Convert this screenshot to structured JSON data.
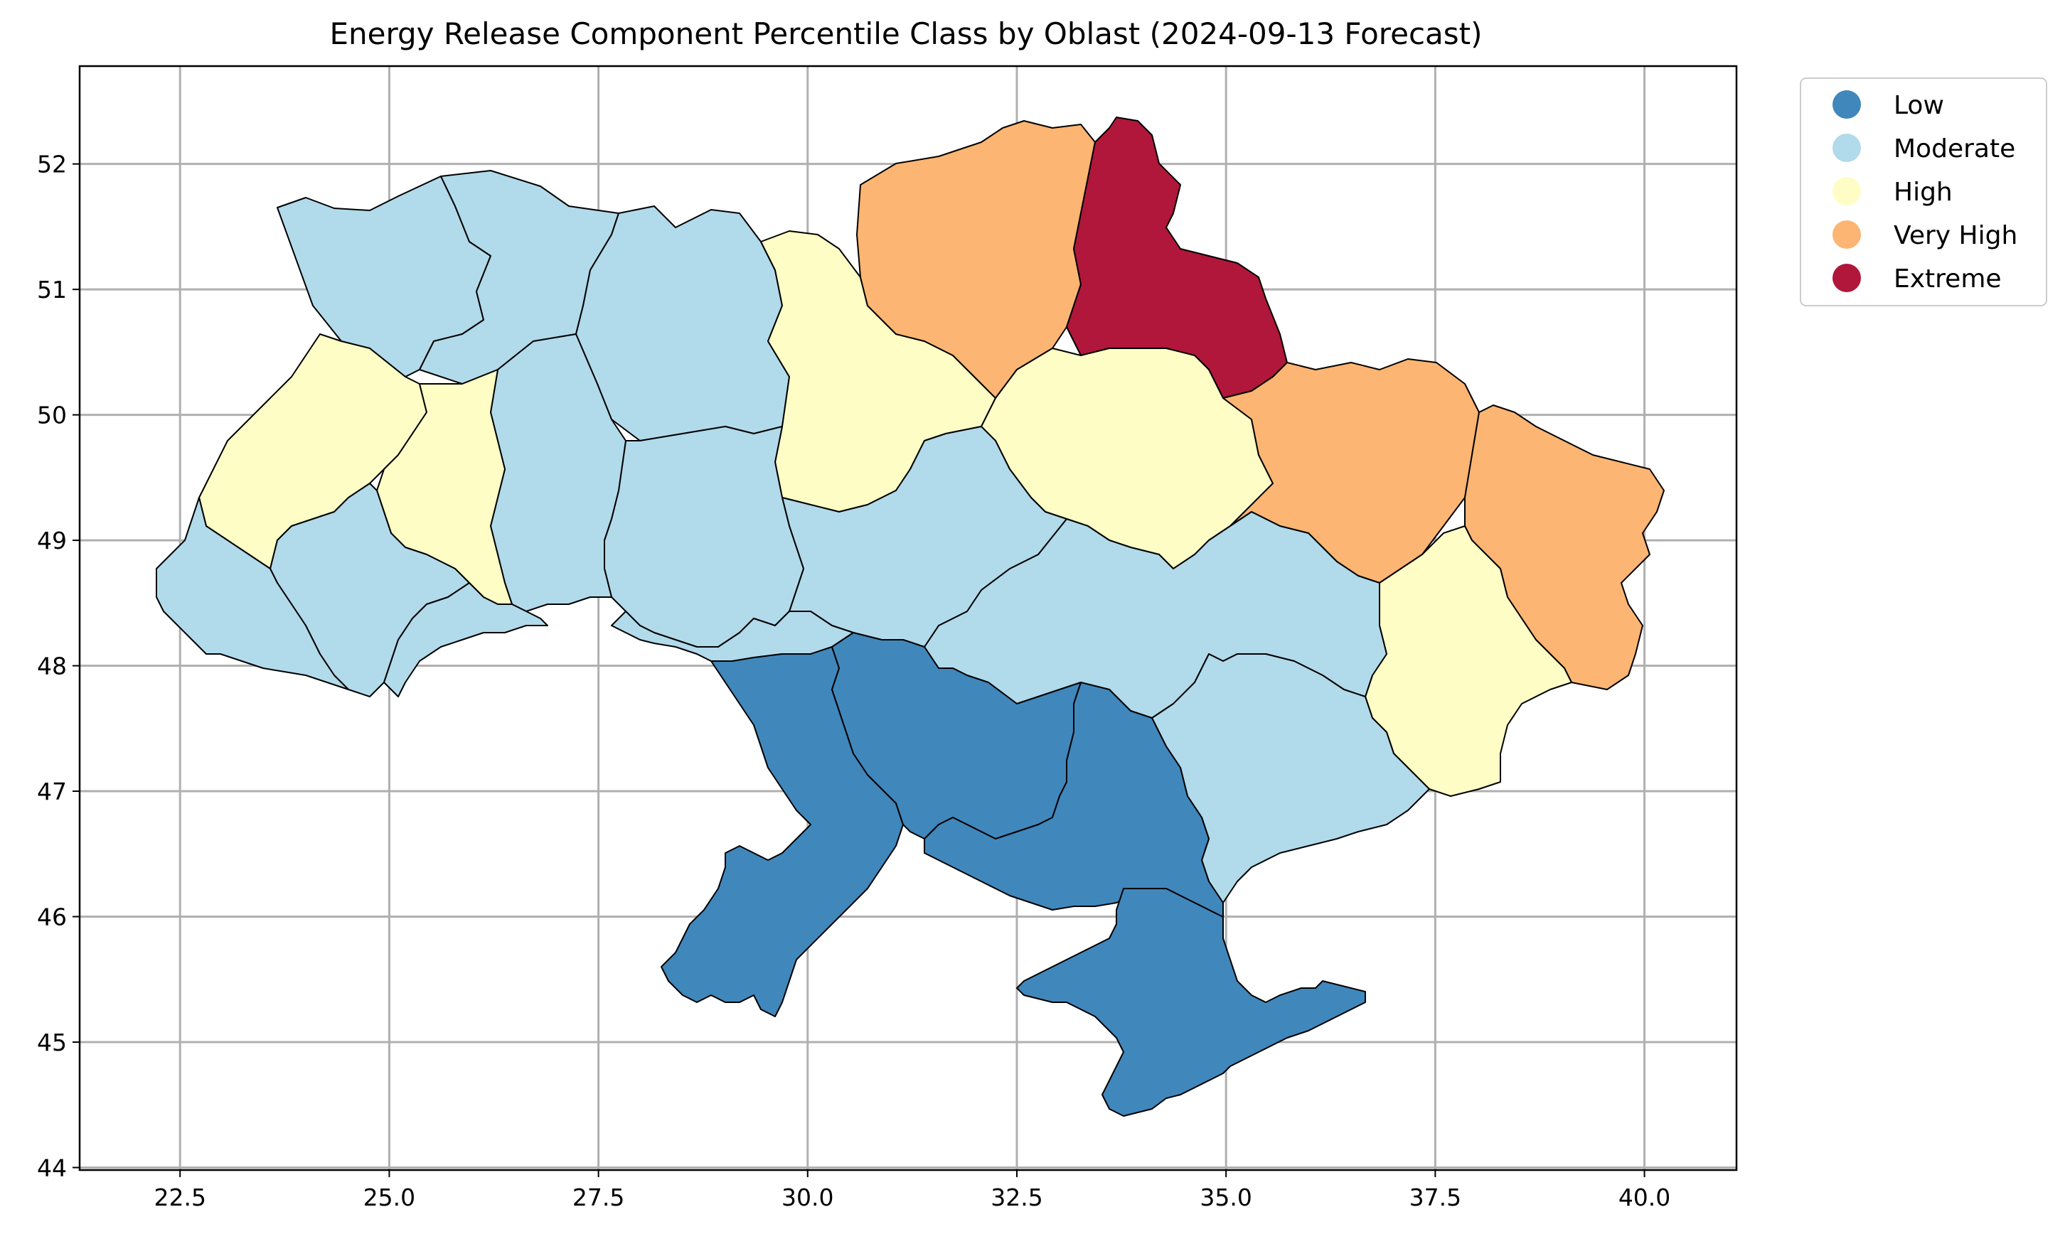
{
  "title": "Energy Release Component Percentile Class by Oblast (2024-09-13 Forecast)",
  "chart_data": {
    "type": "choropleth",
    "title": "Energy Release Component Percentile Class by Oblast (2024-09-13 Forecast)",
    "xlim": [
      21.3,
      41.1
    ],
    "ylim": [
      43.98,
      52.78
    ],
    "x_ticks": [
      "22.5",
      "25.0",
      "27.5",
      "30.0",
      "32.5",
      "35.0",
      "37.5",
      "40.0"
    ],
    "y_ticks": [
      "44",
      "45",
      "46",
      "47",
      "48",
      "49",
      "50",
      "51",
      "52"
    ],
    "grid": true,
    "legend_position": "upper-right-outside",
    "classes": [
      {
        "name": "Low",
        "color": "#4087bc"
      },
      {
        "name": "Moderate",
        "color": "#b1daea"
      },
      {
        "name": "High",
        "color": "#fefdc5"
      },
      {
        "name": "Very High",
        "color": "#fcb572"
      },
      {
        "name": "Extreme",
        "color": "#b0173a"
      }
    ]
  }
}
